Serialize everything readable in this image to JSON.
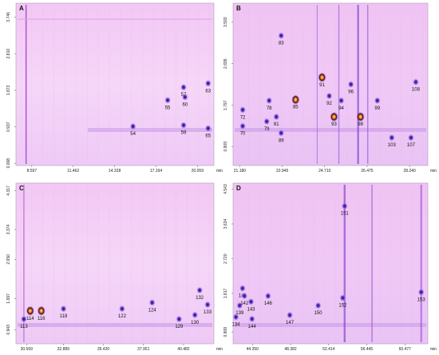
{
  "chart_data": [
    {
      "type": "scatter",
      "panel": "A",
      "x_ticks": [
        "8.597",
        "11.462",
        "14.328",
        "17.194",
        "20.059"
      ],
      "y_ticks": [
        "0.008",
        "0.937",
        "1.873",
        "2.810",
        "3.746"
      ],
      "xunit": "min",
      "peaks": [
        {
          "label": "54",
          "x": 15.6,
          "y": 0.95
        },
        {
          "label": "55",
          "x": 18.0,
          "y": 1.62
        },
        {
          "label": "57",
          "x": 19.1,
          "y": 1.95
        },
        {
          "label": "59",
          "x": 19.1,
          "y": 0.98
        },
        {
          "label": "60",
          "x": 19.2,
          "y": 1.7
        },
        {
          "label": "63",
          "x": 20.8,
          "y": 2.05
        },
        {
          "label": "65",
          "x": 20.8,
          "y": 0.9
        }
      ]
    },
    {
      "type": "scatter",
      "panel": "B",
      "x_ticks": [
        "21.180",
        "22.945",
        "24.710",
        "26.475",
        "28.240"
      ],
      "y_ticks": [
        "0.909",
        "1.797",
        "2.695",
        "3.593"
      ],
      "xunit": "min",
      "peaks": [
        {
          "label": "70",
          "x": 21.3,
          "y": 1.35
        },
        {
          "label": "72",
          "x": 21.3,
          "y": 1.7
        },
        {
          "label": "78",
          "x": 22.4,
          "y": 1.9
        },
        {
          "label": "79",
          "x": 22.3,
          "y": 1.45
        },
        {
          "label": "81",
          "x": 22.7,
          "y": 1.55
        },
        {
          "label": "83",
          "x": 22.9,
          "y": 3.3
        },
        {
          "label": "85",
          "x": 23.5,
          "y": 1.92
        },
        {
          "label": "89",
          "x": 22.9,
          "y": 1.2
        },
        {
          "label": "91",
          "x": 24.6,
          "y": 2.4
        },
        {
          "label": "92",
          "x": 24.9,
          "y": 2.0
        },
        {
          "label": "93",
          "x": 25.1,
          "y": 1.55
        },
        {
          "label": "94",
          "x": 25.4,
          "y": 1.9
        },
        {
          "label": "96",
          "x": 25.8,
          "y": 2.25
        },
        {
          "label": "98",
          "x": 26.2,
          "y": 1.55
        },
        {
          "label": "99",
          "x": 26.9,
          "y": 1.9
        },
        {
          "label": "103",
          "x": 27.5,
          "y": 1.1
        },
        {
          "label": "107",
          "x": 28.3,
          "y": 1.1
        },
        {
          "label": "108",
          "x": 28.5,
          "y": 2.3
        }
      ]
    },
    {
      "type": "scatter",
      "panel": "C",
      "x_ticks": [
        "30.569",
        "32.889",
        "35.420",
        "37.951",
        "40.482"
      ],
      "y_ticks": [
        "0.943",
        "1.697",
        "2.650",
        "3.374",
        "4.317"
      ],
      "xunit": "min",
      "peaks": [
        {
          "label": "113",
          "x": 30.4,
          "y": 1.2
        },
        {
          "label": "114",
          "x": 30.8,
          "y": 1.4
        },
        {
          "label": "116",
          "x": 31.5,
          "y": 1.4
        },
        {
          "label": "118",
          "x": 32.9,
          "y": 1.45
        },
        {
          "label": "122",
          "x": 36.6,
          "y": 1.45
        },
        {
          "label": "124",
          "x": 38.5,
          "y": 1.6
        },
        {
          "label": "129",
          "x": 40.2,
          "y": 1.2
        },
        {
          "label": "130",
          "x": 41.2,
          "y": 1.3
        },
        {
          "label": "132",
          "x": 41.5,
          "y": 1.9
        },
        {
          "label": "133",
          "x": 42.0,
          "y": 1.55
        }
      ]
    },
    {
      "type": "scatter",
      "panel": "D",
      "x_ticks": [
        "44.350",
        "48.382",
        "52.414",
        "56.445",
        "60.477"
      ],
      "y_ticks": [
        "0.809",
        "1.817",
        "2.720",
        "3.634",
        "4.543"
      ],
      "xunit": "min",
      "peaks": [
        {
          "label": "134",
          "x": 42.6,
          "y": 1.2
        },
        {
          "label": "139",
          "x": 43.0,
          "y": 1.5
        },
        {
          "label": "141",
          "x": 43.3,
          "y": 1.95
        },
        {
          "label": "142",
          "x": 43.5,
          "y": 1.75
        },
        {
          "label": "143",
          "x": 44.2,
          "y": 1.6
        },
        {
          "label": "144",
          "x": 44.3,
          "y": 1.15
        },
        {
          "label": "146",
          "x": 46.0,
          "y": 1.75
        },
        {
          "label": "147",
          "x": 48.3,
          "y": 1.25
        },
        {
          "label": "150",
          "x": 51.3,
          "y": 1.5
        },
        {
          "label": "151",
          "x": 54.1,
          "y": 4.1
        },
        {
          "label": "152",
          "x": 53.9,
          "y": 1.7
        },
        {
          "label": "153",
          "x": 62.2,
          "y": 1.85
        }
      ]
    }
  ]
}
